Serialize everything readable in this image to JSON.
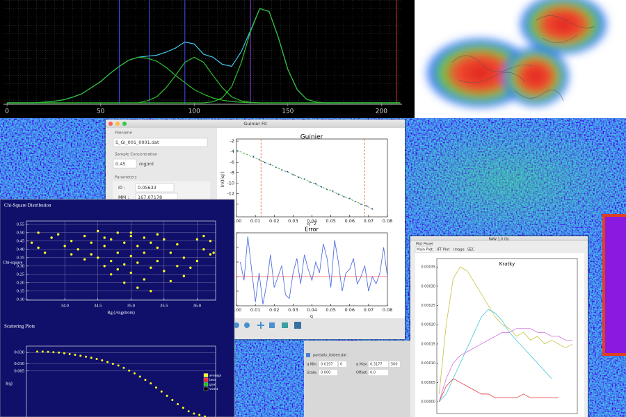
{
  "chromatogram": {
    "type": "line",
    "x": [
      0,
      5,
      10,
      15,
      20,
      25,
      30,
      35,
      40,
      45,
      50,
      55,
      60,
      65,
      70,
      75,
      80,
      85,
      90,
      95,
      100,
      105,
      110,
      115,
      120,
      125,
      130,
      135,
      140,
      145,
      150,
      155,
      160,
      165,
      170,
      175,
      180,
      185,
      190,
      195,
      200,
      205,
      210
    ],
    "xlim": [
      -1.9,
      211
    ],
    "ylim": [
      0,
      1.0
    ],
    "xticks": [
      0,
      50,
      100,
      150,
      200
    ],
    "series": [
      {
        "color": "#40c8e8",
        "values": [
          0,
          0,
          0,
          0,
          0.007,
          0.015,
          0.03,
          0.055,
          0.09,
          0.15,
          0.21,
          0.29,
          0.36,
          0.42,
          0.45,
          0.46,
          0.47,
          0.5,
          0.54,
          0.6,
          0.58,
          0.48,
          0.45,
          0.38,
          0.36,
          0.5,
          0.71,
          0.93,
          0.9,
          0.64,
          0.33,
          0.13,
          0.036,
          0.008,
          0,
          0,
          0,
          0,
          0,
          0,
          0,
          0,
          0
        ]
      },
      {
        "color": "#30c030",
        "values": [
          0,
          0,
          0,
          0,
          0.007,
          0.015,
          0.03,
          0.055,
          0.09,
          0.15,
          0.21,
          0.29,
          0.36,
          0.42,
          0.45,
          0.44,
          0.41,
          0.35,
          0.27,
          0.2,
          0.13,
          0.084,
          0.048,
          0.026,
          0.013,
          0.006,
          0.002,
          0,
          0,
          0,
          0,
          0,
          0,
          0,
          0,
          0,
          0,
          0,
          0,
          0,
          0,
          0,
          0
        ]
      },
      {
        "color": "#30c030",
        "values": [
          0,
          0,
          0,
          0,
          0,
          0,
          0,
          0,
          0,
          0,
          0,
          0,
          0,
          0,
          0,
          0.02,
          0.06,
          0.15,
          0.27,
          0.4,
          0.45,
          0.4,
          0.27,
          0.15,
          0.06,
          0.02,
          0.005,
          0,
          0,
          0,
          0,
          0,
          0,
          0,
          0,
          0,
          0,
          0,
          0,
          0,
          0,
          0,
          0
        ]
      },
      {
        "color": "#30c030",
        "values": [
          0,
          0,
          0,
          0,
          0,
          0,
          0,
          0,
          0,
          0,
          0,
          0,
          0,
          0,
          0,
          0,
          0,
          0,
          0,
          0,
          0,
          0,
          0.01,
          0.05,
          0.16,
          0.39,
          0.7,
          0.93,
          0.9,
          0.64,
          0.33,
          0.13,
          0.036,
          0.008,
          0,
          0,
          0,
          0,
          0,
          0,
          0,
          0,
          0
        ]
      }
    ],
    "marker_lines": [
      {
        "x": 60,
        "color": "#4a4aff"
      },
      {
        "x": 76,
        "color": "#4a4aff"
      },
      {
        "x": 95,
        "color": "#4a4aff"
      },
      {
        "x": 130,
        "color": "#9a40ff"
      },
      {
        "x": 208,
        "color": "#e03030"
      }
    ]
  },
  "guinier_window": {
    "title": "Guinier Fit",
    "filename_label": "Filename",
    "filename": "S_GI_001_0001.dat",
    "concentration_label": "Sample Concentration",
    "concentration": "0.45",
    "concentration_unit": "mg/ml",
    "parameters_label": "Parameters",
    "parameters": [
      {
        "label": "I0 :",
        "value": "0.05633"
      },
      {
        "label": "MM :",
        "value": "167.07178"
      }
    ],
    "guinier_plot": {
      "type": "scatter",
      "title": "Guinier",
      "x_label": "q^2",
      "y_label": "ln(I(q))",
      "xlim": [
        0,
        0.08
      ],
      "ylim": [
        -16.4,
        -1.6
      ],
      "xticks": [
        {
          "value": 0,
          "label": "0.00"
        },
        0.01,
        0.02,
        0.03,
        0.04,
        0.05,
        0.06,
        0.07,
        0.08
      ],
      "yticks": [
        -2,
        -4,
        -6,
        -8,
        -10,
        -12,
        -14
      ],
      "x": [
        0.009,
        0.012,
        0.015,
        0.018,
        0.021,
        0.024,
        0.027,
        0.03,
        0.033,
        0.036,
        0.039,
        0.042,
        0.045,
        0.048,
        0.051,
        0.054,
        0.057,
        0.06,
        0.063,
        0.066,
        0.069,
        0.072
      ],
      "values": [
        -4.9,
        -5.5,
        -6.1,
        -6.4,
        -7.0,
        -7.5,
        -7.8,
        -8.4,
        -8.9,
        -9.2,
        -9.8,
        -10.1,
        -10.7,
        -11.2,
        -11.5,
        -12.1,
        -12.6,
        -12.9,
        -13.5,
        -14.0,
        -14.3,
        -14.9
      ],
      "color": "#3030c0",
      "fit_line": {
        "x": [
          0,
          0.072
        ],
        "values": [
          -3.7,
          -14.86
        ],
        "color": "#40a040"
      },
      "range_lines": {
        "x": [
          0.013,
          0.068
        ],
        "color": "#e06030"
      }
    },
    "error_plot": {
      "type": "line",
      "title": "Error",
      "x_label": "q",
      "xlim": [
        0,
        0.08
      ],
      "ylim": [
        -4,
        6
      ],
      "xticks": [
        {
          "value": 0,
          "label": "0.00"
        },
        0.01,
        0.02,
        0.03,
        0.04,
        0.05,
        0.06,
        0.07,
        0.08
      ],
      "yticks": [
        -4,
        -2,
        0,
        2,
        4,
        6
      ],
      "x": [
        0.002,
        0.004,
        0.006,
        0.008,
        0.01,
        0.012,
        0.014,
        0.016,
        0.018,
        0.02,
        0.022,
        0.024,
        0.026,
        0.028,
        0.03,
        0.032,
        0.034,
        0.036,
        0.038,
        0.04,
        0.042,
        0.044,
        0.046,
        0.048,
        0.05,
        0.052,
        0.054,
        0.056,
        0.058,
        0.06,
        0.062,
        0.064,
        0.066,
        0.068,
        0.07,
        0.072,
        0.074,
        0.076,
        0.078,
        0.08
      ],
      "values": [
        2.0,
        -0.5,
        5.5,
        1.0,
        -3.5,
        0.5,
        -3.8,
        -1.0,
        3.0,
        -1.5,
        0.0,
        1.5,
        -2.5,
        -3.0,
        0.5,
        2.5,
        -1.0,
        3.0,
        1.0,
        -0.5,
        2.0,
        0.5,
        4.5,
        2.5,
        -1.5,
        5.0,
        2.0,
        -2.0,
        0.5,
        1.0,
        2.5,
        -1.0,
        0.0,
        1.5,
        -2.0,
        0.0,
        -1.0,
        0.5,
        4.0,
        0.0
      ],
      "color": "#5070e0",
      "zero_line_color": "#f05050"
    }
  },
  "chi_square_window": {
    "title": "Chi-Square Distribution",
    "chi_plot": {
      "type": "scatter",
      "x_label": "Rg (Angstrom)",
      "y_label": "Chi-square",
      "grid": true,
      "xlim": [
        33.42,
        36.28
      ],
      "ylim": [
        0.095,
        0.57
      ],
      "xticks": [
        {
          "value": 34,
          "label": "34.0"
        },
        34.5,
        {
          "value": 35,
          "label": "35.0"
        },
        35.5,
        {
          "value": 36,
          "label": "36.0"
        }
      ],
      "yticks": [
        {
          "value": 0.1,
          "label": "0.10"
        },
        0.15,
        {
          "value": 0.2,
          "label": "0.20"
        },
        0.25,
        {
          "value": 0.3,
          "label": "0.30"
        },
        0.35,
        {
          "value": 0.4,
          "label": "0.40"
        },
        0.45,
        {
          "value": 0.5,
          "label": "0.50"
        },
        0.55
      ],
      "x": [
        33.5,
        33.6,
        33.7,
        33.8,
        33.9,
        34.0,
        34.1,
        34.2,
        34.3,
        34.4,
        34.4,
        34.5,
        34.5,
        34.6,
        34.6,
        34.7,
        34.7,
        34.7,
        34.8,
        34.8,
        34.8,
        34.9,
        34.9,
        34.9,
        35.0,
        35.0,
        35.0,
        35.1,
        35.1,
        35.1,
        35.2,
        35.2,
        35.2,
        35.3,
        35.3,
        35.3,
        35.4,
        35.4,
        35.5,
        35.5,
        35.6,
        35.6,
        35.7,
        35.7,
        35.8,
        35.8,
        35.9,
        36.0,
        36.0,
        36.1,
        36.1,
        36.2,
        36.2,
        34.3,
        34.6,
        35.0,
        35.4,
        34.1,
        33.6,
        36.25
      ],
      "values": [
        0.44,
        0.5,
        0.38,
        0.47,
        0.49,
        0.42,
        0.45,
        0.4,
        0.48,
        0.44,
        0.37,
        0.51,
        0.35,
        0.42,
        0.3,
        0.46,
        0.33,
        0.25,
        0.5,
        0.38,
        0.28,
        0.44,
        0.31,
        0.2,
        0.48,
        0.36,
        0.26,
        0.42,
        0.32,
        0.17,
        0.47,
        0.38,
        0.22,
        0.44,
        0.29,
        0.15,
        0.41,
        0.33,
        0.46,
        0.27,
        0.38,
        0.21,
        0.43,
        0.3,
        0.35,
        0.24,
        0.29,
        0.46,
        0.33,
        0.48,
        0.4,
        0.45,
        0.37,
        0.34,
        0.47,
        0.5,
        0.49,
        0.37,
        0.41,
        0.38
      ],
      "color": "#ffff20"
    },
    "scattering_title": "Scattering Plots",
    "scattering_plot": {
      "type": "scatter",
      "y_label": "I(q)",
      "log_y": true,
      "grid": true,
      "xlim": [
        0,
        0.35
      ],
      "ylim": [
        5e-05,
        0.056
      ],
      "yticks": [
        {
          "value": 0.03,
          "label": "0.030"
        },
        {
          "value": 0.01,
          "label": "0.010"
        },
        {
          "value": 0.005,
          "label": "0.005"
        }
      ],
      "x": [
        0.02,
        0.03,
        0.04,
        0.05,
        0.06,
        0.07,
        0.08,
        0.09,
        0.1,
        0.11,
        0.12,
        0.13,
        0.14,
        0.15,
        0.16,
        0.17,
        0.18,
        0.19,
        0.2,
        0.21,
        0.22,
        0.23,
        0.24,
        0.25,
        0.26,
        0.27,
        0.28,
        0.29,
        0.3,
        0.31,
        0.32,
        0.33
      ],
      "values": [
        0.033,
        0.033,
        0.032,
        0.031,
        0.03,
        0.028,
        0.026,
        0.024,
        0.022,
        0.02,
        0.018,
        0.016,
        0.014,
        0.012,
        0.01,
        0.0085,
        0.0068,
        0.0052,
        0.004,
        0.0029,
        0.0021,
        0.0015,
        0.001,
        0.00068,
        0.00045,
        0.0003,
        0.0002,
        0.00014,
        0.0001,
        8e-05,
        7e-05,
        6e-05
      ],
      "color": "#ffff20",
      "legend": [
        {
          "name": "average",
          "color": "#ffff20"
        },
        {
          "name": "best",
          "color": "#ff2020"
        },
        {
          "name": "goal",
          "color": "#20c020"
        },
        {
          "name": "worst",
          "color": "#000000"
        }
      ]
    }
  },
  "raw_window": {
    "title": "RAW 1.0.0b",
    "panel_label": "Plot Panel",
    "tabs": [
      "Main Plot",
      "IFT Plot",
      "Image",
      "SEC"
    ],
    "kratky_plot": {
      "type": "line",
      "title": "Kratky",
      "xlim": [
        0,
        0.3
      ],
      "ylim": [
        -3.07e-05,
        0.000372
      ],
      "yticks": [
        {
          "value": 0,
          "label": "0.00000"
        },
        {
          "value": 5e-05,
          "label": "0.00005"
        },
        {
          "value": 0.0001,
          "label": "0.00010"
        },
        {
          "value": 0.00015,
          "label": "0.00015"
        },
        {
          "value": 0.0002,
          "label": "0.00020"
        },
        {
          "value": 0.00025,
          "label": "0.00025"
        },
        {
          "value": 0.0003,
          "label": "0.00030"
        },
        {
          "value": 0.00035,
          "label": "0.00035"
        }
      ],
      "x": [
        0.005,
        0.02,
        0.035,
        0.05,
        0.065,
        0.08,
        0.095,
        0.11,
        0.125,
        0.14,
        0.155,
        0.17,
        0.185,
        0.2,
        0.215,
        0.23,
        0.245,
        0.26,
        0.275,
        0.29
      ],
      "series": [
        {
          "color": "#c8c040",
          "values": [
            2e-05,
            0.0002,
            0.00032,
            0.00035,
            0.00034,
            0.00031,
            0.00028,
            0.00025,
            0.00022,
            0.0002,
            0.00019,
            0.00017,
            0.00018,
            0.00016,
            0.00017,
            0.00015,
            0.00016,
            0.00015,
            0.00014,
            0.00015
          ]
        },
        {
          "color": "#40c8d8",
          "values": [
            0,
            2e-05,
            6e-05,
            0.0001,
            0.00014,
            0.00018,
            0.00022,
            0.00024,
            0.00023,
            0.00021,
            0.00018,
            0.00016,
            0.00014,
            0.00012,
            0.0001,
            8e-05,
            6e-05,
            null,
            null,
            null
          ]
        },
        {
          "color": "#d070e0",
          "values": [
            0,
            6e-05,
            0.0001,
            0.00012,
            0.00013,
            0.00014,
            0.00015,
            0.00016,
            0.00017,
            0.00018,
            0.00018,
            0.00019,
            0.00019,
            0.00019,
            0.00018,
            0.00018,
            0.00017,
            0.00017,
            0.00016,
            0.00016
          ]
        },
        {
          "color": "#e04040",
          "values": [
            0,
            4e-05,
            6e-05,
            5e-05,
            4e-05,
            3e-05,
            2e-05,
            2e-05,
            1e-05,
            1e-05,
            1e-05,
            1e-05,
            2e-05,
            1e-05,
            1e-05,
            1e-05,
            1e-05,
            1e-05,
            null,
            null
          ]
        }
      ]
    }
  },
  "file_panel": {
    "filename": "partially_folded.dat",
    "q_min_label": "q Min:",
    "q_min": "0.0197",
    "q_min_index": "0",
    "q_max_label": "q Max:",
    "q_max": "0.3177",
    "q_max_index": "500",
    "scale_label": "Scale:",
    "scale": "0.000",
    "offset_label": "Offset:",
    "offset": "0.0"
  }
}
